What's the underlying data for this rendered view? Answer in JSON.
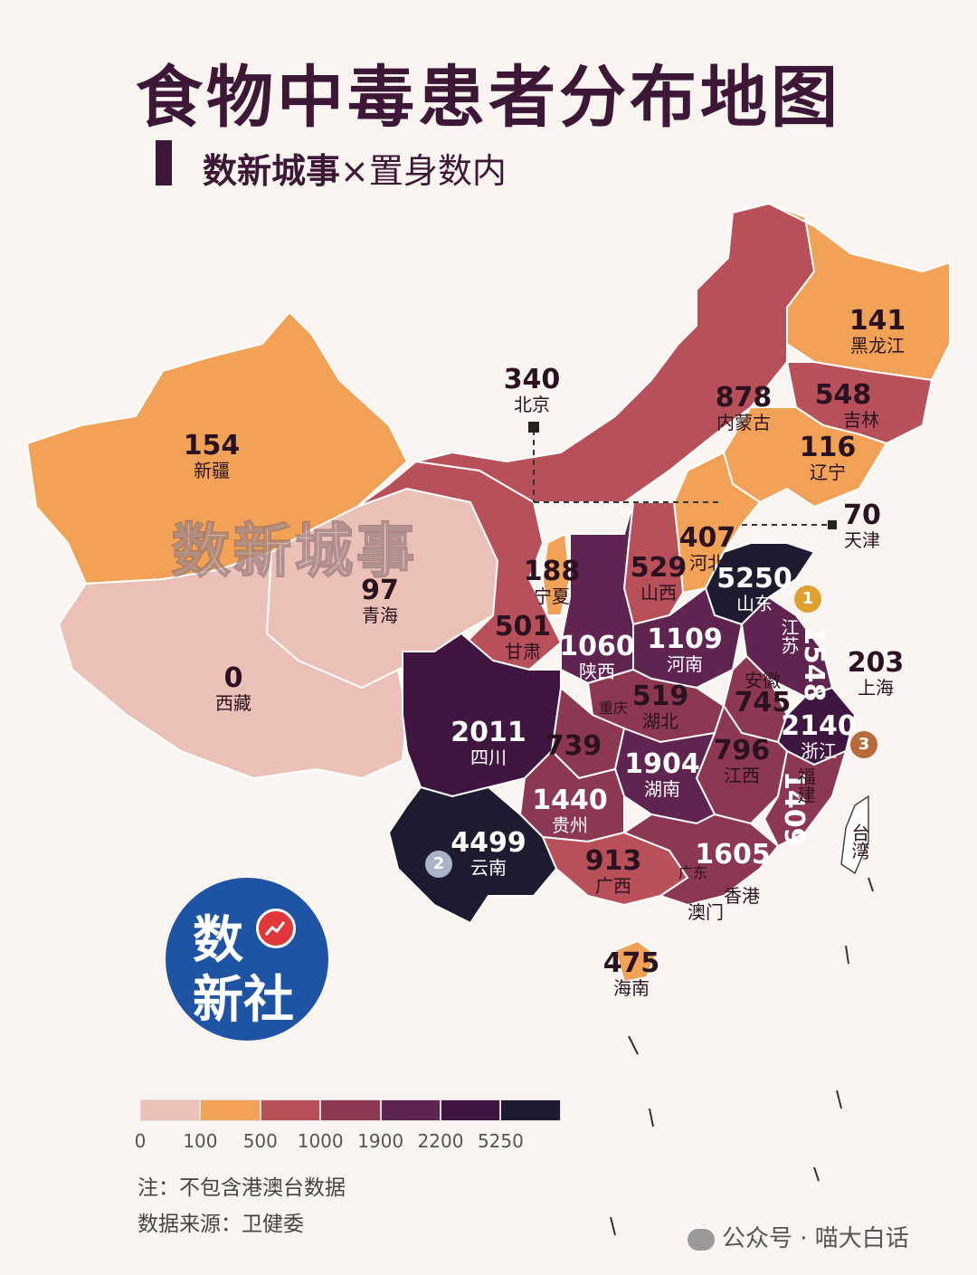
{
  "title": "食物中毒患者分布地图",
  "subtitle": {
    "bold": "数新城事",
    "sep": "×",
    "rest": "置身数内"
  },
  "watermark": "数新城事",
  "logo": {
    "line1": "数",
    "line2": "新社"
  },
  "legend": {
    "colors": [
      "#ebc0b6",
      "#f2a256",
      "#b8505a",
      "#8c3852",
      "#5f2450",
      "#3e1640",
      "#1e1a30"
    ],
    "ticks": [
      "0",
      "100",
      "500",
      "1000",
      "1900",
      "2200",
      "5250"
    ]
  },
  "notes": {
    "note1": "注：不包含港澳台数据",
    "note2": "数据来源：卫健委"
  },
  "footer": "公众号 · 喵大白话",
  "provinces": [
    {
      "name": "黑龙江",
      "value": "141"
    },
    {
      "name": "吉林",
      "value": "548"
    },
    {
      "name": "辽宁",
      "value": "116"
    },
    {
      "name": "内蒙古",
      "value": "878"
    },
    {
      "name": "北京",
      "value": "340"
    },
    {
      "name": "天津",
      "value": "70"
    },
    {
      "name": "河北",
      "value": "407"
    },
    {
      "name": "山东",
      "value": "5250"
    },
    {
      "name": "山西",
      "value": "529"
    },
    {
      "name": "宁夏",
      "value": "188"
    },
    {
      "name": "新疆",
      "value": "154"
    },
    {
      "name": "青海",
      "value": "97"
    },
    {
      "name": "西藏",
      "value": "0"
    },
    {
      "name": "甘肃",
      "value": "501"
    },
    {
      "name": "陕西",
      "value": "1060"
    },
    {
      "name": "河南",
      "value": "1109"
    },
    {
      "name": "江苏",
      "value": "1548"
    },
    {
      "name": "上海",
      "value": "203"
    },
    {
      "name": "安徽",
      "value": "745"
    },
    {
      "name": "湖北",
      "value": "519"
    },
    {
      "name": "重庆",
      "value": "739"
    },
    {
      "name": "四川",
      "value": "2011"
    },
    {
      "name": "浙江",
      "value": "2140"
    },
    {
      "name": "湖南",
      "value": "1904"
    },
    {
      "name": "江西",
      "value": "796"
    },
    {
      "name": "福建",
      "value": "1409"
    },
    {
      "name": "贵州",
      "value": "1440"
    },
    {
      "name": "云南",
      "value": "4499"
    },
    {
      "name": "广西",
      "value": "913"
    },
    {
      "name": "广东",
      "value": "1605"
    },
    {
      "name": "海南",
      "value": "475"
    },
    {
      "name": "香港",
      "value": ""
    },
    {
      "name": "澳门",
      "value": ""
    },
    {
      "name": "台湾",
      "value": ""
    }
  ],
  "medals": [
    "1",
    "2",
    "3"
  ]
}
